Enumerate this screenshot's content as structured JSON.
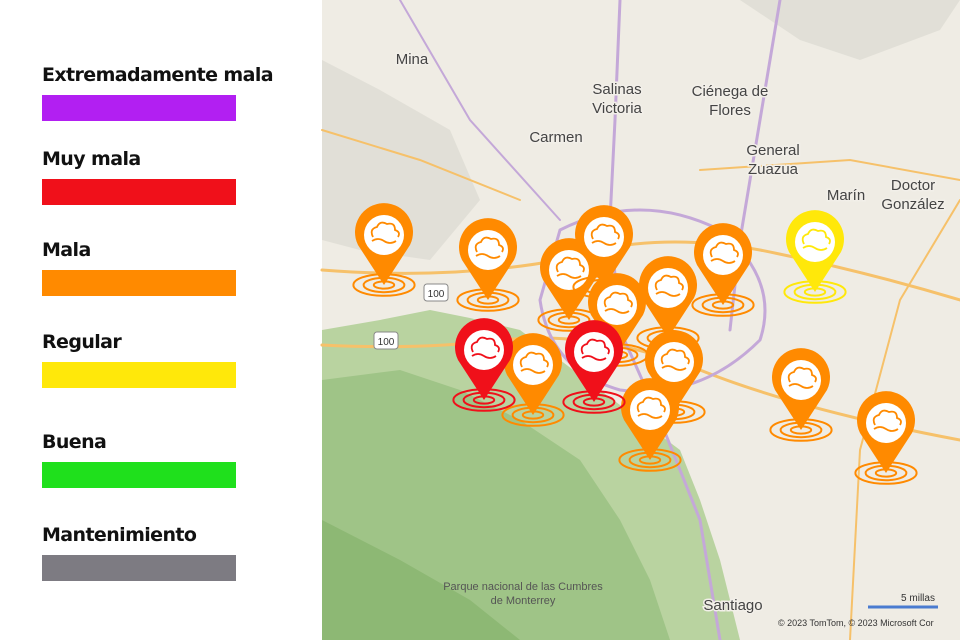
{
  "legend": [
    {
      "label": "Extremadamente mala",
      "color": "#b21ff2"
    },
    {
      "label": "Muy mala",
      "color": "#f0101a"
    },
    {
      "label": "Mala",
      "color": "#ff8a00"
    },
    {
      "label": "Regular",
      "color": "#ffe80a"
    },
    {
      "label": "Buena",
      "color": "#1fe01c"
    },
    {
      "label": "Mantenimiento",
      "color": "#7d7b82"
    }
  ],
  "map": {
    "places": [
      [
        "Mina"
      ],
      [
        "Salinas",
        "Victoria"
      ],
      [
        "Ciénega de",
        "Flores"
      ],
      [
        "Carmen"
      ],
      [
        "General",
        "Zuazua"
      ],
      [
        "Marín"
      ],
      [
        "Doctor",
        "González"
      ],
      [
        "Santiago"
      ],
      [
        "Parque nacional de las Cumbres",
        "de Monterrey"
      ]
    ],
    "road_shields": [
      "100",
      "100"
    ],
    "scale": "5 millas",
    "copyright": "© 2023 TomTom, © 2023 Microsoft Cor"
  }
}
